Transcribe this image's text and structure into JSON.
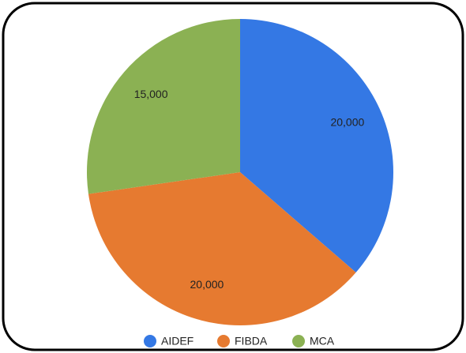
{
  "chart_data": {
    "type": "pie",
    "categories": [
      "AIDEF",
      "FIBDA",
      "MCA"
    ],
    "values": [
      20000,
      20000,
      15000
    ],
    "value_labels": [
      "20,000",
      "20,000",
      "15,000"
    ],
    "colors": [
      "#3478e4",
      "#e67a30",
      "#8bb153"
    ],
    "legend": "bottom"
  }
}
